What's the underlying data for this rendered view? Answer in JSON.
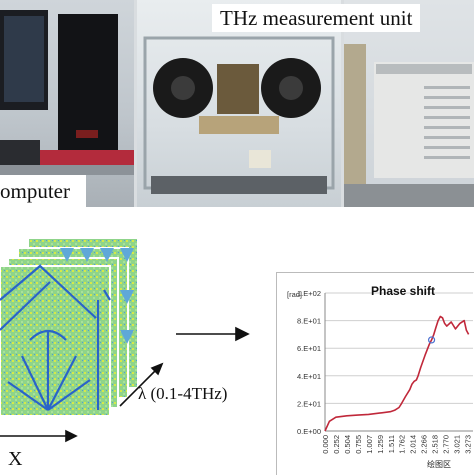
{
  "captions": {
    "computer": "omputer",
    "thz_unit": "THz measurement unit",
    "lambda": "λ (0.1-4THz)",
    "x_axis": "X"
  },
  "chart_data": {
    "type": "line",
    "title": "Phase shift",
    "ylabel": "[rad]",
    "ylim": [
      0,
      100
    ],
    "yticks": [
      "0.E+00",
      "2.E+01",
      "4.E+01",
      "6.E+01",
      "8.E+01",
      "1.E+02"
    ],
    "xticks": [
      "0.000",
      "0.252",
      "0.504",
      "0.755",
      "1.007",
      "1.259",
      "1.511",
      "1.762",
      "2.014",
      "2.266",
      "2.518",
      "2.770",
      "3.021",
      "3.273"
    ],
    "annotation": "绘图区",
    "series": [
      {
        "color": "#c0283a",
        "x": [
          0.0,
          0.1,
          0.25,
          0.5,
          0.75,
          1.0,
          1.25,
          1.5,
          1.6,
          1.7,
          1.76,
          1.85,
          1.95,
          2.0,
          2.05,
          2.1,
          2.14,
          2.2,
          2.3,
          2.4,
          2.45,
          2.5,
          2.55,
          2.6,
          2.65,
          2.7,
          2.75,
          2.8,
          2.9,
          3.0,
          3.1,
          3.2,
          3.25,
          3.3
        ],
        "y": [
          0,
          7,
          10,
          11,
          11.5,
          12,
          13,
          14,
          15,
          17,
          20,
          25,
          30,
          34,
          36,
          37,
          40,
          46,
          55,
          63,
          66,
          70,
          75,
          80,
          83,
          82,
          78,
          76,
          79,
          74,
          78,
          80,
          73,
          70
        ]
      }
    ]
  },
  "colors": {
    "heatmap_base": "#8fd48a",
    "heatmap_yellow": "#d6e84a",
    "heatmap_blue": "#2a64c8",
    "curve": "#c0283a",
    "grid": "#cfcfcf"
  }
}
